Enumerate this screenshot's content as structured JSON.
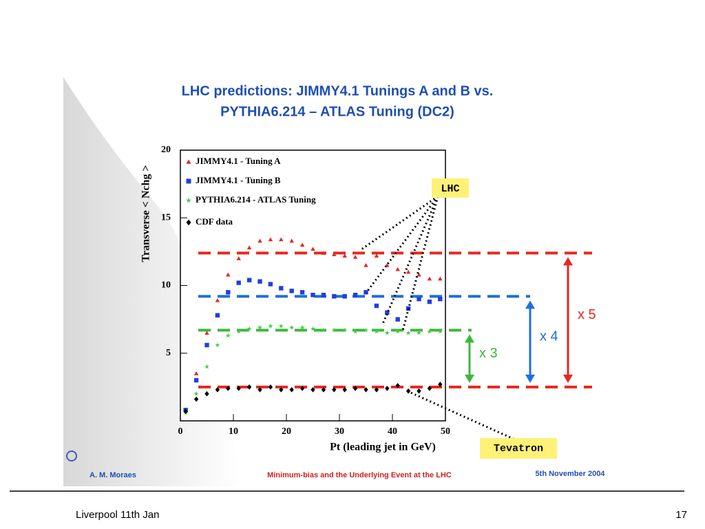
{
  "chart_data": {
    "type": "scatter",
    "title_lines": [
      "LHC predictions: JIMMY4.1 Tunings A and B vs.",
      "PYTHIA6.214 – ATLAS Tuning (DC2)"
    ],
    "x_label": "Pt (leading jet in GeV)",
    "y_label": "Transverse < Nchg >",
    "x": [
      1,
      3,
      5,
      7,
      9,
      11,
      13,
      15,
      17,
      19,
      21,
      23,
      25,
      27,
      29,
      31,
      33,
      35,
      37,
      39,
      41,
      43,
      45,
      47,
      49
    ],
    "series": [
      {
        "name": "JIMMY4.1 - Tuning A",
        "color": "#e8261f",
        "marker": "triangle",
        "values": [
          0.8,
          3.5,
          6.5,
          8.9,
          10.8,
          12.0,
          12.8,
          13.3,
          13.4,
          13.4,
          13.3,
          13.0,
          12.7,
          12.4,
          12.3,
          12.2,
          12.1,
          11.5,
          12.2,
          11.5,
          11.2,
          11.0,
          10.8,
          10.5,
          10.5
        ]
      },
      {
        "name": "JIMMY4.1 - Tuning B",
        "color": "#1f3fe0",
        "marker": "square",
        "values": [
          0.8,
          3.0,
          5.6,
          7.8,
          9.5,
          10.2,
          10.4,
          10.3,
          10.1,
          9.8,
          9.6,
          9.5,
          9.3,
          9.3,
          9.2,
          9.2,
          9.3,
          9.5,
          8.5,
          8.0,
          7.5,
          8.3,
          9.0,
          8.8,
          9.0
        ]
      },
      {
        "name": "PYTHIA6.214 - ATLAS Tuning",
        "color": "#3ccf3c",
        "marker": "star",
        "values": [
          0.6,
          2.0,
          4.0,
          5.6,
          6.3,
          6.6,
          6.8,
          6.9,
          7.0,
          7.0,
          6.9,
          6.9,
          6.8,
          6.7,
          6.7,
          6.7,
          6.6,
          6.7,
          6.6,
          6.5,
          6.6,
          6.5,
          6.5,
          6.6,
          6.6
        ]
      },
      {
        "name": "CDF data",
        "color": "#000000",
        "marker": "diamond",
        "values": [
          0.7,
          1.6,
          2.0,
          2.3,
          2.4,
          2.4,
          2.5,
          2.3,
          2.5,
          2.3,
          2.3,
          2.4,
          2.3,
          2.3,
          2.3,
          2.3,
          2.4,
          2.3,
          2.3,
          2.4,
          2.6,
          2.2,
          2.2,
          2.4,
          2.7
        ]
      }
    ],
    "xlim": [
      0,
      50
    ],
    "xticks": [
      0,
      10,
      20,
      30,
      40,
      50
    ],
    "ylim": [
      0,
      20
    ],
    "yticks": [
      5,
      10,
      15,
      20
    ],
    "reference_lines": [
      {
        "value": 12.4,
        "color": "#e8261f"
      },
      {
        "value": 9.2,
        "color": "#1f6fe0"
      },
      {
        "value": 6.7,
        "color": "#3cb83c"
      },
      {
        "value": 2.5,
        "color": "#e8261f"
      }
    ],
    "annotations": [
      {
        "text": "x 5",
        "color": "#e8261f"
      },
      {
        "text": "x 4",
        "color": "#1f6fe0"
      },
      {
        "text": "x 3",
        "color": "#3cb83c"
      },
      {
        "text": "LHC"
      },
      {
        "text": "Tevatron"
      }
    ]
  },
  "slide": {
    "author": "A. M. Moraes",
    "talk": "Minimum-bias and the Underlying Event at the LHC",
    "date": "5th November 2004",
    "footer_left": "Liverpool 11th Jan",
    "page_number": "17"
  }
}
